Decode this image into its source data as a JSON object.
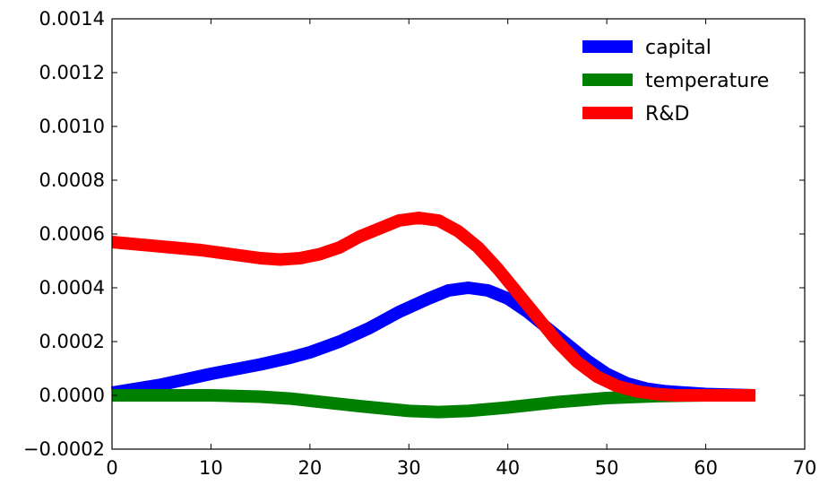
{
  "chart_data": {
    "type": "line",
    "title": "",
    "xlabel": "",
    "ylabel": "",
    "xlim": [
      0,
      70
    ],
    "ylim": [
      -0.0002,
      0.0014
    ],
    "xticks": [
      0,
      10,
      20,
      30,
      40,
      50,
      60,
      70
    ],
    "xtick_labels": [
      "0",
      "10",
      "20",
      "30",
      "40",
      "50",
      "60",
      "70"
    ],
    "yticks": [
      -0.0002,
      0.0,
      0.0002,
      0.0004,
      0.0006,
      0.0008,
      0.001,
      0.0012,
      0.0014
    ],
    "ytick_labels": [
      "−0.0002",
      "0.0000",
      "0.0002",
      "0.0004",
      "0.0006",
      "0.0008",
      "0.0010",
      "0.0012",
      "0.0014"
    ],
    "grid": false,
    "legend_position": "top-right",
    "series": [
      {
        "name": "capital",
        "color": "#0000ff",
        "x": [
          0,
          5,
          10,
          15,
          18,
          20,
          23,
          26,
          29,
          32,
          34,
          36,
          38,
          40,
          42,
          44,
          46,
          48,
          50,
          52,
          54,
          56,
          58,
          60,
          62,
          65
        ],
        "y": [
          1e-05,
          4e-05,
          8e-05,
          0.000115,
          0.00014,
          0.00016,
          0.0002,
          0.00025,
          0.00031,
          0.00036,
          0.00039,
          0.0004,
          0.00039,
          0.00036,
          0.00031,
          0.00025,
          0.00019,
          0.00013,
          8e-05,
          4.5e-05,
          2.5e-05,
          1.5e-05,
          1e-05,
          5e-06,
          3e-06,
          0.0
        ]
      },
      {
        "name": "temperature",
        "color": "#008000",
        "x": [
          0,
          5,
          10,
          15,
          18,
          20,
          25,
          30,
          33,
          36,
          40,
          45,
          50,
          55,
          60,
          65
        ],
        "y": [
          0.0,
          0.0,
          0.0,
          -5e-06,
          -1.2e-05,
          -2e-05,
          -4e-05,
          -5.8e-05,
          -6.2e-05,
          -5.8e-05,
          -4.5e-05,
          -2.5e-05,
          -1e-05,
          -3e-06,
          0.0,
          0.0
        ]
      },
      {
        "name": "R&D",
        "color": "#ff0000",
        "x": [
          0,
          3,
          6,
          9,
          12,
          15,
          17,
          19,
          21,
          23,
          25,
          27,
          29,
          31,
          33,
          35,
          37,
          39,
          41,
          43,
          45,
          47,
          49,
          51,
          53,
          55,
          57,
          59,
          61,
          63,
          65
        ],
        "y": [
          0.00057,
          0.00056,
          0.00055,
          0.00054,
          0.000525,
          0.00051,
          0.000505,
          0.00051,
          0.000525,
          0.00055,
          0.00059,
          0.00062,
          0.00065,
          0.00066,
          0.00065,
          0.00061,
          0.00055,
          0.00047,
          0.00038,
          0.00029,
          0.0002,
          0.000125,
          7e-05,
          3.5e-05,
          1.5e-05,
          5e-06,
          0.0,
          0.0,
          0.0,
          0.0,
          0.0
        ]
      }
    ]
  }
}
